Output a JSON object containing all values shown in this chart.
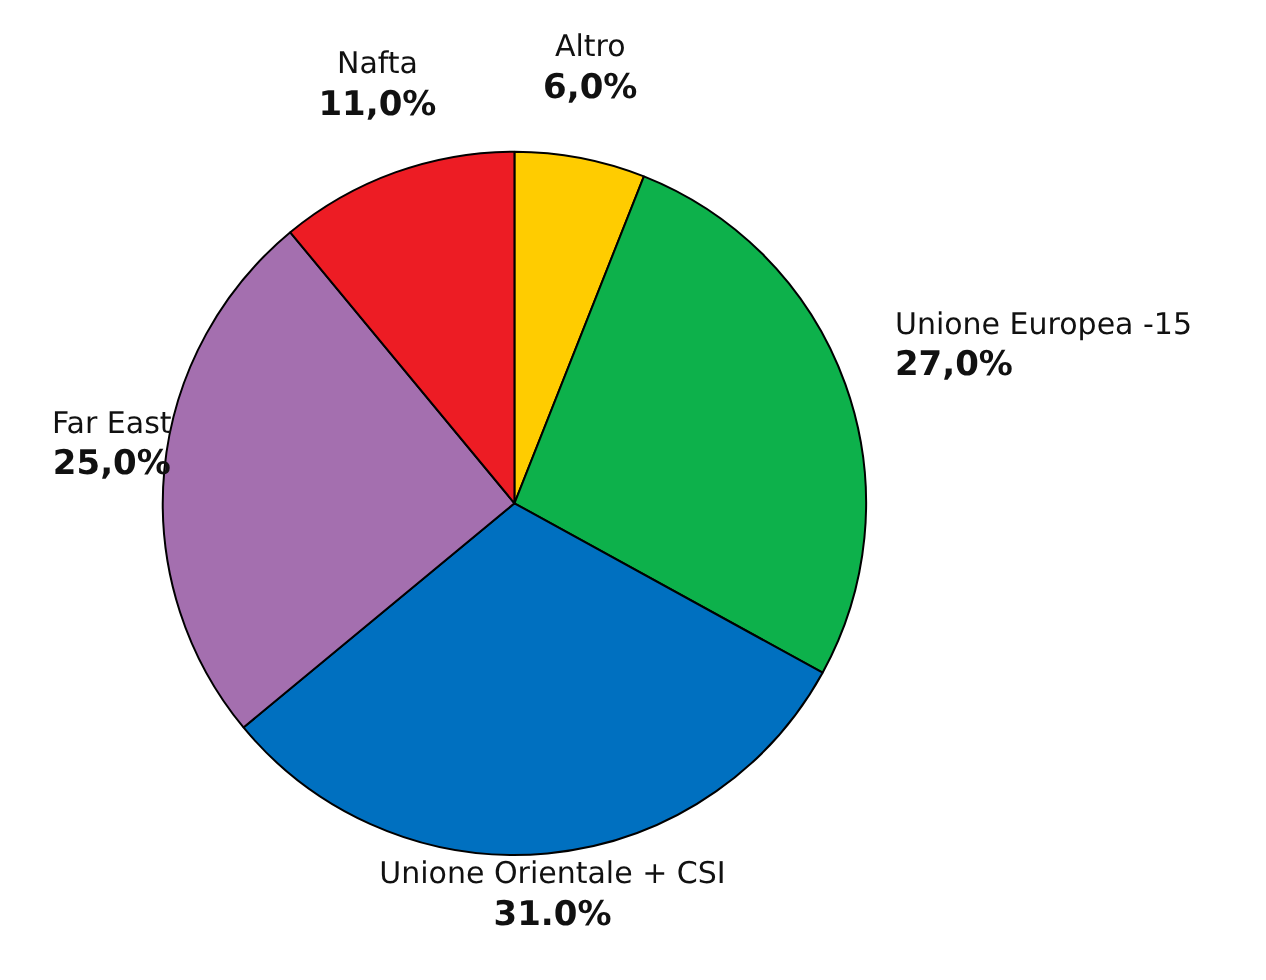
{
  "chart_data": {
    "type": "pie",
    "categories": [
      "Altro",
      "Unione Europea -15",
      "Unione Orientale + CSI",
      "Far East",
      "Nafta"
    ],
    "values": [
      6,
      27,
      31,
      25,
      11
    ],
    "value_labels": [
      "6,0%",
      "27,0%",
      "31.0%",
      "25,0%",
      "11,0%"
    ],
    "colors": [
      "#ffcc00",
      "#0db14b",
      "#0070c0",
      "#a46faf",
      "#ed1c24"
    ]
  }
}
